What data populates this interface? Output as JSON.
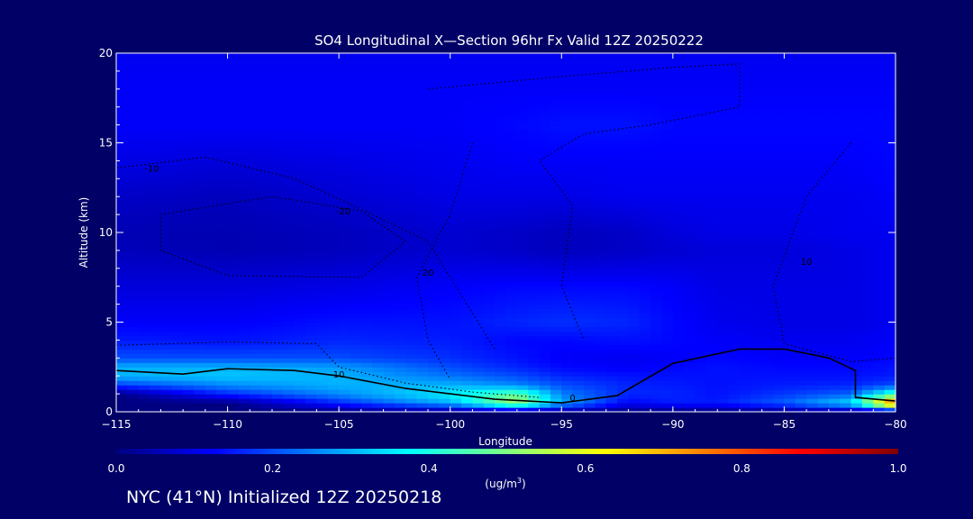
{
  "chart_data": {
    "type": "heatmap",
    "title": "SO4 Longitudinal X—Section 96hr  Fx Valid 12Z 20250222",
    "xlabel": "Longitude",
    "ylabel": "Altitude (km)",
    "xlim": [
      -115,
      -80
    ],
    "ylim": [
      0,
      20
    ],
    "x_ticks": [
      -115,
      -110,
      -105,
      -100,
      -95,
      -90,
      -85,
      -80
    ],
    "x_tick_labels": [
      "−115",
      "−110",
      "−105",
      "−100",
      "−95",
      "−90",
      "−85",
      "−80"
    ],
    "y_ticks": [
      0,
      5,
      10,
      15,
      20
    ],
    "y_tick_labels": [
      "0",
      "5",
      "10",
      "15",
      "20"
    ],
    "colorbar": {
      "min": 0.0,
      "max": 1.0,
      "ticks": [
        0.0,
        0.2,
        0.4,
        0.6,
        0.8,
        1.0
      ],
      "tick_labels": [
        "0.0",
        "0.2",
        "0.4",
        "0.6",
        "0.8",
        "1.0"
      ],
      "unit_prefix": "(ug/m",
      "unit_exp": "3",
      "unit_suffix": ")",
      "colormap": [
        "#000080",
        "#0000ff",
        "#0080ff",
        "#00ffff",
        "#80ff80",
        "#ffff00",
        "#ff8000",
        "#ff0000",
        "#800000"
      ]
    },
    "field": {
      "x_nodes": [
        -115,
        -110,
        -105,
        -100,
        -97,
        -95,
        -92,
        -90,
        -88,
        -85,
        -82,
        -80
      ],
      "y_nodes": [
        0,
        0.5,
        1,
        1.5,
        2,
        2.5,
        3,
        4,
        5,
        7,
        9,
        10,
        12,
        14,
        16,
        18,
        20
      ],
      "values": [
        [
          0.0,
          0.0,
          0.0,
          0.0,
          0.0,
          0.0,
          0.0,
          0.0,
          0.0,
          0.0,
          0.0,
          0.0
        ],
        [
          0.0,
          0.0,
          0.16,
          0.3,
          0.55,
          0.3,
          0.12,
          0.15,
          0.15,
          0.22,
          0.35,
          0.85
        ],
        [
          0.0,
          0.16,
          0.26,
          0.36,
          0.48,
          0.25,
          0.16,
          0.16,
          0.14,
          0.18,
          0.22,
          0.45
        ],
        [
          0.18,
          0.26,
          0.3,
          0.3,
          0.26,
          0.2,
          0.16,
          0.15,
          0.14,
          0.15,
          0.16,
          0.2
        ],
        [
          0.3,
          0.32,
          0.3,
          0.24,
          0.2,
          0.16,
          0.14,
          0.14,
          0.14,
          0.14,
          0.14,
          0.15
        ],
        [
          0.3,
          0.3,
          0.28,
          0.2,
          0.16,
          0.13,
          0.12,
          0.13,
          0.14,
          0.13,
          0.13,
          0.14
        ],
        [
          0.2,
          0.2,
          0.2,
          0.17,
          0.14,
          0.12,
          0.11,
          0.12,
          0.13,
          0.12,
          0.12,
          0.13
        ],
        [
          0.15,
          0.14,
          0.16,
          0.15,
          0.13,
          0.13,
          0.14,
          0.13,
          0.12,
          0.11,
          0.11,
          0.12
        ],
        [
          0.12,
          0.12,
          0.14,
          0.14,
          0.16,
          0.17,
          0.16,
          0.13,
          0.11,
          0.1,
          0.1,
          0.11
        ],
        [
          0.09,
          0.09,
          0.1,
          0.12,
          0.13,
          0.13,
          0.13,
          0.12,
          0.1,
          0.1,
          0.1,
          0.11
        ],
        [
          0.06,
          0.05,
          0.06,
          0.08,
          0.07,
          0.06,
          0.07,
          0.08,
          0.09,
          0.09,
          0.1,
          0.11
        ],
        [
          0.05,
          0.05,
          0.06,
          0.08,
          0.07,
          0.06,
          0.07,
          0.09,
          0.1,
          0.1,
          0.11,
          0.11
        ],
        [
          0.07,
          0.06,
          0.08,
          0.1,
          0.1,
          0.1,
          0.11,
          0.11,
          0.11,
          0.11,
          0.11,
          0.12
        ],
        [
          0.1,
          0.09,
          0.1,
          0.11,
          0.12,
          0.12,
          0.12,
          0.12,
          0.12,
          0.12,
          0.12,
          0.13
        ],
        [
          0.12,
          0.12,
          0.12,
          0.12,
          0.13,
          0.14,
          0.14,
          0.13,
          0.13,
          0.13,
          0.13,
          0.13
        ],
        [
          0.12,
          0.12,
          0.12,
          0.12,
          0.12,
          0.12,
          0.12,
          0.12,
          0.12,
          0.12,
          0.12,
          0.12
        ],
        [
          0.11,
          0.11,
          0.11,
          0.11,
          0.11,
          0.11,
          0.11,
          0.11,
          0.11,
          0.11,
          0.11,
          0.11
        ]
      ]
    },
    "contours": [
      {
        "label": "0",
        "style": "solid",
        "label_at": [
          -94.5,
          0.8
        ],
        "points": [
          [
            -115,
            2.3
          ],
          [
            -112,
            2.1
          ],
          [
            -110,
            2.4
          ],
          [
            -107,
            2.3
          ],
          [
            -105,
            2.0
          ],
          [
            -102,
            1.3
          ],
          [
            -98,
            0.7
          ],
          [
            -95,
            0.5
          ],
          [
            -92.5,
            0.9
          ],
          [
            -90,
            2.7
          ],
          [
            -87,
            3.5
          ],
          [
            -85,
            3.5
          ],
          [
            -83,
            3.0
          ],
          [
            -81.8,
            2.3
          ],
          [
            -81.8,
            0.8
          ],
          [
            -80,
            0.6
          ]
        ]
      },
      {
        "label": "10",
        "style": "dotted",
        "label_at": [
          -105,
          2.1
        ],
        "points": [
          [
            -115,
            3.7
          ],
          [
            -110,
            3.9
          ],
          [
            -106,
            3.8
          ],
          [
            -105,
            2.5
          ],
          [
            -102,
            1.6
          ],
          [
            -99,
            1.1
          ],
          [
            -96,
            0.8
          ]
        ]
      },
      {
        "label": "20",
        "style": "dotted",
        "label_at": [
          -101,
          7.8
        ],
        "points": [
          [
            -99,
            15.0
          ],
          [
            -100,
            11.0
          ],
          [
            -101.5,
            7.5
          ],
          [
            -101,
            4.0
          ],
          [
            -100,
            1.8
          ]
        ]
      },
      {
        "label": "10",
        "style": "dotted",
        "label_at": [
          -84,
          8.4
        ],
        "points": [
          [
            -82,
            15.0
          ],
          [
            -84,
            12.0
          ],
          [
            -85.5,
            7.0
          ],
          [
            -85,
            3.8
          ],
          [
            -82,
            2.8
          ],
          [
            -80,
            3.0
          ]
        ]
      },
      {
        "label": "-10",
        "style": "dotted",
        "label_at": [
          -113.4,
          13.6
        ],
        "points": [
          [
            -115,
            13.6
          ],
          [
            -111,
            14.2
          ],
          [
            -107,
            13.0
          ],
          [
            -104,
            11.3
          ],
          [
            -101,
            9.5
          ],
          [
            -99,
            5.5
          ],
          [
            -98,
            3.5
          ]
        ]
      },
      {
        "label": "-20",
        "style": "dotted",
        "label_at": [
          -104.8,
          11.2
        ],
        "points": [
          [
            -113,
            11.0
          ],
          [
            -108,
            12.0
          ],
          [
            -104,
            11.2
          ],
          [
            -102,
            9.5
          ],
          [
            -104,
            7.5
          ],
          [
            -110,
            7.6
          ],
          [
            -113,
            9.0
          ],
          [
            -113,
            11.0
          ]
        ]
      },
      {
        "label": "",
        "style": "dotted",
        "label_at": null,
        "points": [
          [
            -101,
            18.0
          ],
          [
            -95,
            18.7
          ],
          [
            -90,
            19.2
          ],
          [
            -87,
            19.4
          ],
          [
            -87,
            17.0
          ],
          [
            -91,
            16.0
          ],
          [
            -94,
            15.5
          ],
          [
            -96,
            14.0
          ],
          [
            -94.5,
            11.5
          ],
          [
            -95,
            7.0
          ],
          [
            -94,
            4.0
          ]
        ]
      }
    ]
  },
  "bottom_note": "NYC (41°N) Initialized 12Z 20250218"
}
